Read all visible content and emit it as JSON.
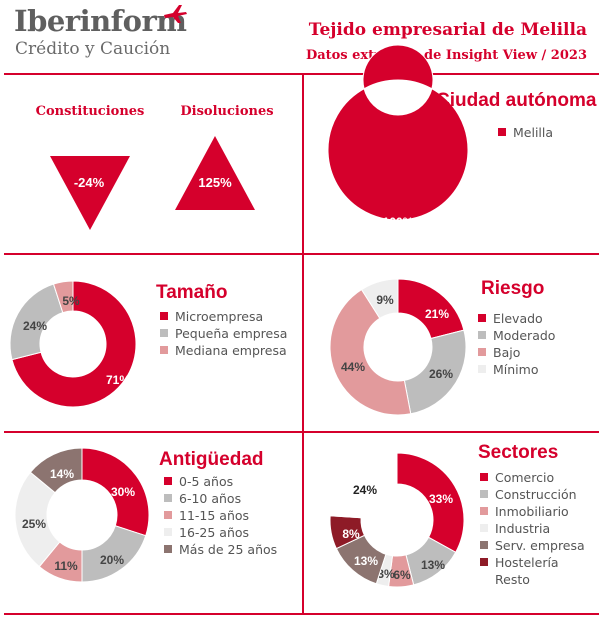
{
  "header": {
    "logo_name": "Iberinform",
    "logo_tagline": "Crédito y Caución",
    "title": "Tejido empresarial de Melilla",
    "subtitle": "Datos extraídos de Insight View / 2023"
  },
  "colors": {
    "brand_red": "#d5002c",
    "grey": "#bdbdbd",
    "pink": "#e29a9c",
    "light": "#eeeeee",
    "brown": "#8c7470",
    "dark_red": "#8e1b27"
  },
  "indicators": [
    {
      "label": "Constituciones",
      "value": "-24%",
      "direction": "down"
    },
    {
      "label": "Disoluciones",
      "value": "125%",
      "direction": "up"
    }
  ],
  "chart_data": [
    {
      "type": "pie",
      "title": "Ciudad autónoma",
      "categories": [
        "Melilla"
      ],
      "values": [
        100
      ],
      "value_labels": [
        "100%"
      ],
      "colors": [
        "#d5002c"
      ]
    },
    {
      "type": "pie",
      "title": "Tamaño",
      "categories": [
        "Microempresa",
        "Pequeña empresa",
        "Mediana empresa"
      ],
      "values": [
        71,
        24,
        5
      ],
      "value_labels": [
        "71%",
        "24%",
        "5%"
      ],
      "colors": [
        "#d5002c",
        "#bdbdbd",
        "#e29a9c"
      ]
    },
    {
      "type": "pie",
      "title": "Riesgo",
      "categories": [
        "Elevado",
        "Moderado",
        "Bajo",
        "Mínimo"
      ],
      "values": [
        21,
        26,
        44,
        9
      ],
      "value_labels": [
        "21%",
        "26%",
        "44%",
        "9%"
      ],
      "colors": [
        "#d5002c",
        "#bdbdbd",
        "#e29a9c",
        "#eeeeee"
      ]
    },
    {
      "type": "pie",
      "title": "Antigüedad",
      "categories": [
        "0-5 años",
        "6-10 años",
        "11-15 años",
        "16-25 años",
        "Más de 25 años"
      ],
      "values": [
        30,
        20,
        11,
        25,
        14
      ],
      "value_labels": [
        "30%",
        "20%",
        "11%",
        "25%",
        "14%"
      ],
      "colors": [
        "#d5002c",
        "#bdbdbd",
        "#e29a9c",
        "#eeeeee",
        "#8c7470"
      ]
    },
    {
      "type": "pie",
      "title": "Sectores",
      "categories": [
        "Comercio",
        "Construcción",
        "Inmobiliario",
        "Industria",
        "Serv. empresa",
        "Hostelería",
        "Resto"
      ],
      "values": [
        33,
        13,
        6,
        3,
        13,
        8,
        24
      ],
      "value_labels": [
        "33%",
        "13%",
        "6%",
        "3%",
        "13%",
        "8%",
        "24%"
      ],
      "colors": [
        "#d5002c",
        "#bdbdbd",
        "#e29a9c",
        "#eeeeee",
        "#8c7470",
        "#8e1b27",
        "#ffffff"
      ]
    }
  ]
}
